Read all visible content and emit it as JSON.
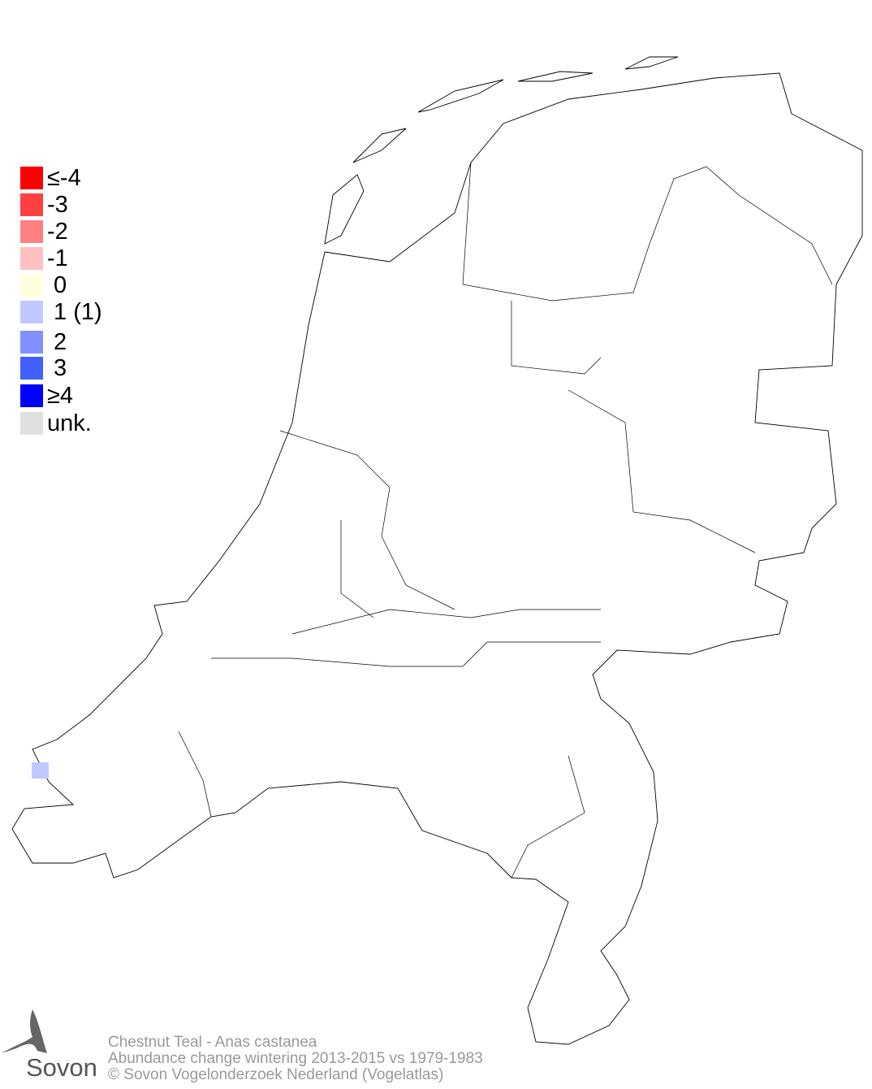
{
  "legend": [
    {
      "label": "≤-4",
      "color": "#ff0000"
    },
    {
      "label": "-3",
      "color": "#ff4040"
    },
    {
      "label": "-2",
      "color": "#ff8080"
    },
    {
      "label": "-1",
      "color": "#ffc0c0"
    },
    {
      "label": " 0",
      "color": "#ffffe0"
    },
    {
      "label": " 1 (1)",
      "color": "#c0c8ff"
    },
    {
      "label": " 2",
      "color": "#8090ff"
    },
    {
      "label": " 3",
      "color": "#4060ff"
    },
    {
      "label": "≥4",
      "color": "#0000ff"
    },
    {
      "label": "unk.",
      "color": "#e0e0e0"
    }
  ],
  "map": {
    "cells": [
      {
        "value": 1,
        "color": "#c0c8ff"
      }
    ]
  },
  "footer": {
    "line1": "Chestnut Teal - Anas castanea",
    "line2": "Abundance change wintering  2013-2015 vs 1979-1983",
    "line3": "© Sovon Vogelonderzoek Nederland (Vogelatlas)"
  },
  "logo": {
    "text": "Sovon"
  }
}
